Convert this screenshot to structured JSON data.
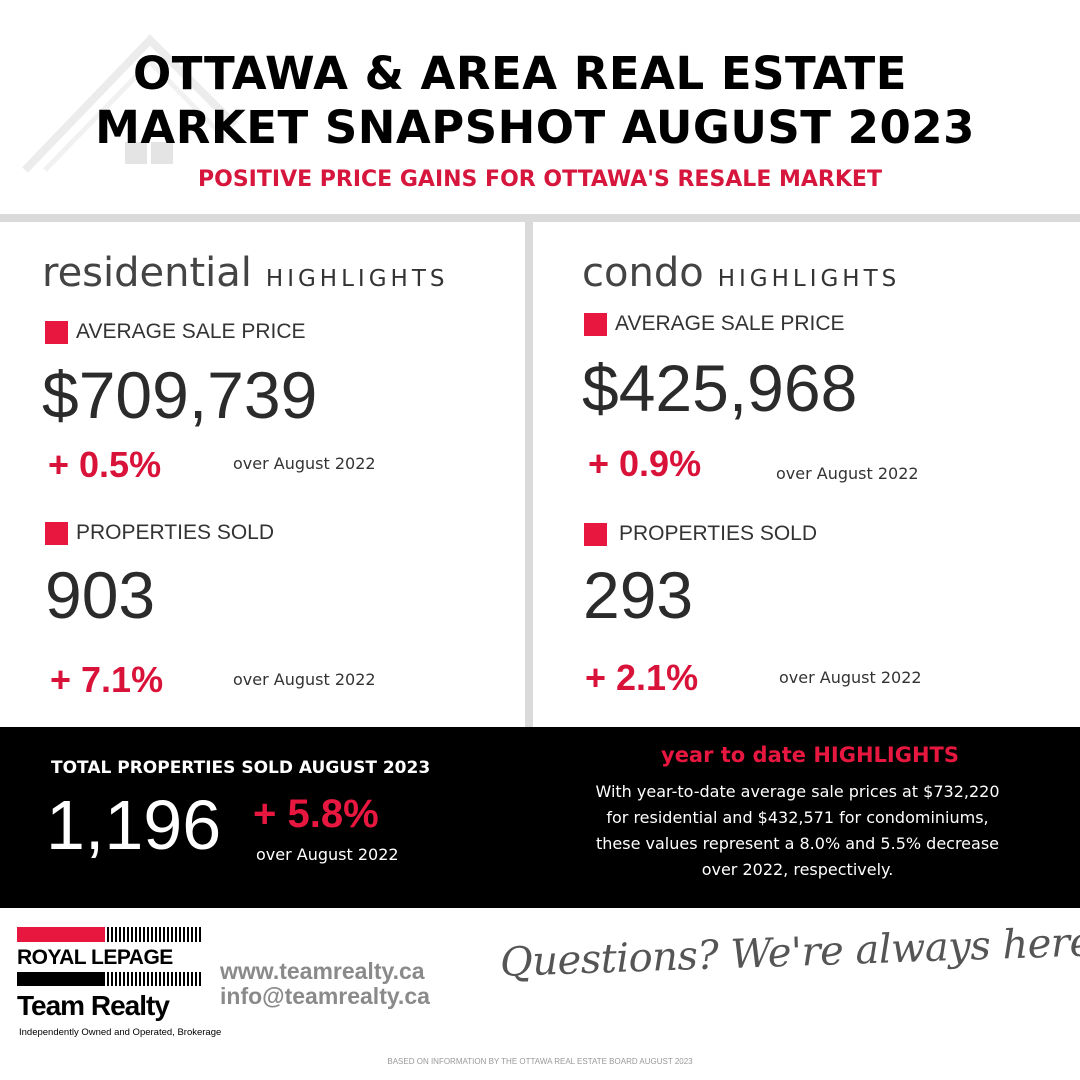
{
  "header": {
    "title_line1": "OTTAWA & AREA REAL ESTATE",
    "title_line2": "MARKET SNAPSHOT AUGUST 2023",
    "subtitle": "POSITIVE PRICE GAINS FOR OTTAWA'S RESALE MARKET"
  },
  "residential": {
    "word": "residential",
    "tag": "HIGHLIGHTS",
    "avg_price_label": "AVERAGE SALE PRICE",
    "avg_price_value": "$709,739",
    "avg_price_change": "+ 0.5%",
    "avg_price_over": "over August 2022",
    "sold_label": "PROPERTIES SOLD",
    "sold_value": "903",
    "sold_change": "+ 7.1%",
    "sold_over": "over August 2022"
  },
  "condo": {
    "word": "condo",
    "tag": "HIGHLIGHTS",
    "avg_price_label": "AVERAGE SALE PRICE",
    "avg_price_value": "$425,968",
    "avg_price_change": "+  0.9%",
    "avg_price_over": "over August 2022",
    "sold_label": "PROPERTIES SOLD",
    "sold_value": "293",
    "sold_change": "+ 2.1%",
    "sold_over": "over August 2022"
  },
  "total": {
    "label": "TOTAL PROPERTIES SOLD AUGUST 2023",
    "value": "1,196",
    "change": "+ 5.8%",
    "over": "over August 2022"
  },
  "ytd": {
    "title": "year to date HIGHLIGHTS",
    "line1": "With year-to-date average sale prices at $732,220",
    "line2": "for residential and $432,571 for condominiums,",
    "line3": "these values represent a 8.0% and 5.5% decrease",
    "line4": "over 2022, respectively."
  },
  "logo": {
    "brand": "ROYAL LEPAGE",
    "team": "Team Realty",
    "tagline": "Independently Owned and Operated, Brokerage"
  },
  "contact": {
    "website": "www.teamrealty.ca",
    "email": "info@teamrealty.ca"
  },
  "message": "Questions? We're always here to help",
  "footnote": "BASED ON INFORMATION BY THE OTTAWA REAL ESTATE BOARD AUGUST 2023",
  "colors": {
    "accent_red": "#e8173f",
    "band_black": "#000000",
    "divider_gray": "#dadada"
  }
}
